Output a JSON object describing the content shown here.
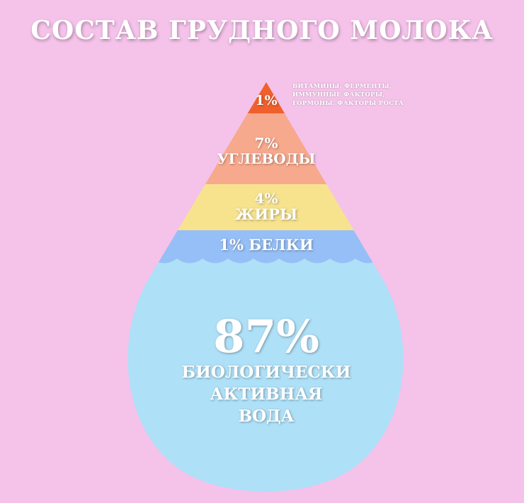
{
  "title": "СОСТАВ ГРУДНОГО МОЛОКА",
  "colors": {
    "background": "#f5c2ea",
    "top": "#f0602c",
    "carbs": "#f7a98d",
    "fats": "#f7e38e",
    "proteins": "#96bff7",
    "water": "#aee0f7"
  },
  "layers": {
    "top": {
      "percent": "1%",
      "note_lines": [
        "ВИТАМИНЫ, ФЕРМЕНТЫ,",
        "ИММУННЫЕ ФАКТОРЫ,",
        "ГОРМОНЫ, ФАКТОРЫ РОСТА"
      ]
    },
    "carbs": {
      "percent": "7%",
      "name": "УГЛЕВОДЫ"
    },
    "fats": {
      "percent": "4%",
      "name": "ЖИРЫ"
    },
    "proteins": {
      "label": "1% БЕЛКИ"
    },
    "water": {
      "percent": "87%",
      "name_lines": [
        "БИОЛОГИЧЕСКИ",
        "АКТИВНАЯ",
        "ВОДА"
      ]
    }
  }
}
